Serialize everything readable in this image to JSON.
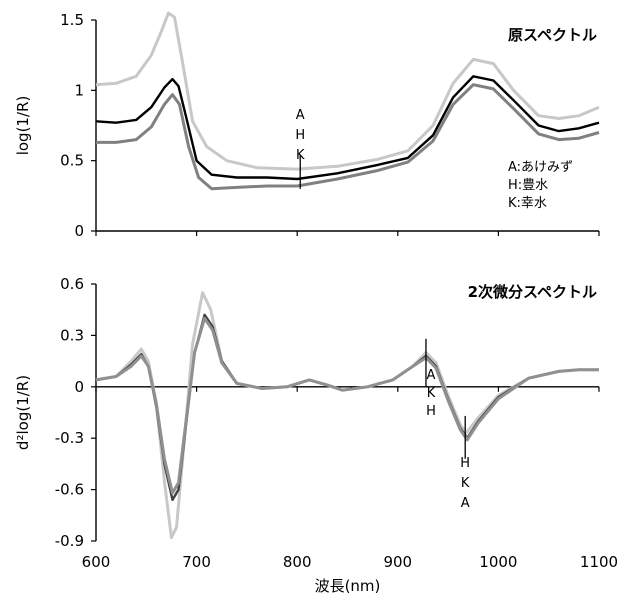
{
  "chart_data": [
    {
      "type": "line",
      "title": "原スペクトル",
      "xlabel": "",
      "ylabel": "log(1/R)",
      "xlim": [
        600,
        1100
      ],
      "ylim": [
        0,
        1.5
      ],
      "x_ticks": [
        "600",
        "700",
        "800",
        "900",
        "1000",
        "1100"
      ],
      "y_ticks": [
        "1.5",
        "1",
        "0.5",
        "0"
      ],
      "legend": {
        "placement": "right",
        "entries": [
          "A:あけみず",
          "H:豊水",
          "K:幸水"
        ]
      },
      "series": [
        {
          "color": "#c8c8c8",
          "points": [
            [
              600,
              1.04
            ],
            [
              620,
              1.05
            ],
            [
              640,
              1.1
            ],
            [
              655,
              1.25
            ],
            [
              665,
              1.42
            ],
            [
              672,
              1.55
            ],
            [
              678,
              1.52
            ],
            [
              686,
              1.2
            ],
            [
              696,
              0.78
            ],
            [
              710,
              0.6
            ],
            [
              730,
              0.5
            ],
            [
              760,
              0.45
            ],
            [
              800,
              0.44
            ],
            [
              840,
              0.46
            ],
            [
              880,
              0.51
            ],
            [
              910,
              0.57
            ],
            [
              935,
              0.75
            ],
            [
              955,
              1.05
            ],
            [
              975,
              1.22
            ],
            [
              995,
              1.19
            ],
            [
              1015,
              1.0
            ],
            [
              1040,
              0.82
            ],
            [
              1060,
              0.8
            ],
            [
              1080,
              0.82
            ],
            [
              1100,
              0.88
            ]
          ]
        },
        {
          "color": "#000000",
          "points": [
            [
              600,
              0.78
            ],
            [
              620,
              0.77
            ],
            [
              640,
              0.79
            ],
            [
              655,
              0.88
            ],
            [
              668,
              1.02
            ],
            [
              676,
              1.08
            ],
            [
              682,
              1.03
            ],
            [
              690,
              0.8
            ],
            [
              700,
              0.5
            ],
            [
              715,
              0.4
            ],
            [
              740,
              0.38
            ],
            [
              770,
              0.38
            ],
            [
              800,
              0.37
            ],
            [
              840,
              0.41
            ],
            [
              880,
              0.47
            ],
            [
              910,
              0.52
            ],
            [
              935,
              0.68
            ],
            [
              955,
              0.95
            ],
            [
              975,
              1.1
            ],
            [
              995,
              1.07
            ],
            [
              1015,
              0.93
            ],
            [
              1040,
              0.75
            ],
            [
              1060,
              0.71
            ],
            [
              1080,
              0.73
            ],
            [
              1100,
              0.77
            ]
          ]
        },
        {
          "color": "#808080",
          "points": [
            [
              600,
              0.63
            ],
            [
              620,
              0.63
            ],
            [
              640,
              0.65
            ],
            [
              655,
              0.74
            ],
            [
              668,
              0.9
            ],
            [
              676,
              0.97
            ],
            [
              683,
              0.9
            ],
            [
              692,
              0.6
            ],
            [
              702,
              0.38
            ],
            [
              715,
              0.3
            ],
            [
              740,
              0.31
            ],
            [
              770,
              0.32
            ],
            [
              800,
              0.32
            ],
            [
              840,
              0.37
            ],
            [
              880,
              0.43
            ],
            [
              910,
              0.49
            ],
            [
              935,
              0.64
            ],
            [
              955,
              0.9
            ],
            [
              975,
              1.04
            ],
            [
              995,
              1.01
            ],
            [
              1015,
              0.87
            ],
            [
              1040,
              0.69
            ],
            [
              1060,
              0.65
            ],
            [
              1080,
              0.66
            ],
            [
              1100,
              0.7
            ]
          ]
        }
      ],
      "markers": [
        {
          "x": 803,
          "y_low": 0.3,
          "y_high": 0.54,
          "labels": [
            "A",
            "H",
            "K"
          ]
        }
      ]
    },
    {
      "type": "line",
      "title": "2次微分スペクトル",
      "xlabel": "波長(nm)",
      "ylabel": "d²log(1/R)",
      "xlim": [
        600,
        1100
      ],
      "ylim": [
        -0.9,
        0.6
      ],
      "x_ticks": [
        "600",
        "700",
        "800",
        "900",
        "1000",
        "1100"
      ],
      "y_ticks": [
        "0.6",
        "0.3",
        "0",
        "-0.3",
        "-0.6",
        "-0.9"
      ],
      "series": [
        {
          "color": "#c8c8c8",
          "points": [
            [
              600,
              0.04
            ],
            [
              620,
              0.06
            ],
            [
              635,
              0.15
            ],
            [
              645,
              0.22
            ],
            [
              652,
              0.15
            ],
            [
              660,
              -0.1
            ],
            [
              668,
              -0.55
            ],
            [
              675,
              -0.88
            ],
            [
              680,
              -0.82
            ],
            [
              688,
              -0.3
            ],
            [
              696,
              0.25
            ],
            [
              706,
              0.55
            ],
            [
              714,
              0.45
            ],
            [
              725,
              0.15
            ],
            [
              740,
              0.02
            ],
            [
              765,
              -0.01
            ],
            [
              790,
              0.0
            ],
            [
              812,
              0.04
            ],
            [
              830,
              0.01
            ],
            [
              845,
              -0.02
            ],
            [
              870,
              0.0
            ],
            [
              895,
              0.04
            ],
            [
              915,
              0.12
            ],
            [
              928,
              0.2
            ],
            [
              938,
              0.14
            ],
            [
              950,
              -0.05
            ],
            [
              962,
              -0.22
            ],
            [
              968,
              -0.27
            ],
            [
              980,
              -0.18
            ],
            [
              1000,
              -0.05
            ],
            [
              1030,
              0.05
            ],
            [
              1060,
              0.09
            ],
            [
              1080,
              0.1
            ],
            [
              1100,
              0.1
            ]
          ]
        },
        {
          "color": "#404040",
          "points": [
            [
              600,
              0.04
            ],
            [
              620,
              0.06
            ],
            [
              635,
              0.13
            ],
            [
              645,
              0.19
            ],
            [
              652,
              0.12
            ],
            [
              660,
              -0.12
            ],
            [
              668,
              -0.45
            ],
            [
              676,
              -0.66
            ],
            [
              682,
              -0.6
            ],
            [
              690,
              -0.2
            ],
            [
              698,
              0.2
            ],
            [
              708,
              0.42
            ],
            [
              716,
              0.35
            ],
            [
              725,
              0.15
            ],
            [
              740,
              0.02
            ],
            [
              765,
              -0.01
            ],
            [
              790,
              0.0
            ],
            [
              812,
              0.04
            ],
            [
              830,
              0.01
            ],
            [
              845,
              -0.02
            ],
            [
              870,
              0.0
            ],
            [
              895,
              0.04
            ],
            [
              915,
              0.12
            ],
            [
              928,
              0.18
            ],
            [
              938,
              0.12
            ],
            [
              950,
              -0.07
            ],
            [
              962,
              -0.24
            ],
            [
              969,
              -0.3
            ],
            [
              980,
              -0.2
            ],
            [
              1000,
              -0.06
            ],
            [
              1030,
              0.05
            ],
            [
              1060,
              0.09
            ],
            [
              1080,
              0.1
            ],
            [
              1100,
              0.1
            ]
          ]
        },
        {
          "color": "#909090",
          "points": [
            [
              600,
              0.04
            ],
            [
              620,
              0.06
            ],
            [
              635,
              0.12
            ],
            [
              645,
              0.18
            ],
            [
              652,
              0.12
            ],
            [
              660,
              -0.1
            ],
            [
              668,
              -0.42
            ],
            [
              676,
              -0.62
            ],
            [
              682,
              -0.56
            ],
            [
              690,
              -0.18
            ],
            [
              698,
              0.2
            ],
            [
              708,
              0.4
            ],
            [
              716,
              0.33
            ],
            [
              725,
              0.14
            ],
            [
              740,
              0.02
            ],
            [
              765,
              -0.01
            ],
            [
              790,
              0.0
            ],
            [
              812,
              0.04
            ],
            [
              830,
              0.01
            ],
            [
              845,
              -0.02
            ],
            [
              870,
              0.0
            ],
            [
              895,
              0.04
            ],
            [
              915,
              0.12
            ],
            [
              928,
              0.17
            ],
            [
              938,
              0.11
            ],
            [
              950,
              -0.08
            ],
            [
              962,
              -0.25
            ],
            [
              969,
              -0.31
            ],
            [
              980,
              -0.21
            ],
            [
              1000,
              -0.07
            ],
            [
              1030,
              0.05
            ],
            [
              1060,
              0.09
            ],
            [
              1080,
              0.1
            ],
            [
              1100,
              0.1
            ]
          ]
        }
      ],
      "markers": [
        {
          "x": 928,
          "y_low": 0.0,
          "y_high": 0.28,
          "labels": [
            "A",
            "K",
            "H"
          ],
          "label_pos": "below"
        },
        {
          "x": 967,
          "y_low": -0.42,
          "y_high": -0.17,
          "labels": [
            "H",
            "K",
            "A"
          ],
          "label_pos": "below"
        }
      ]
    }
  ]
}
